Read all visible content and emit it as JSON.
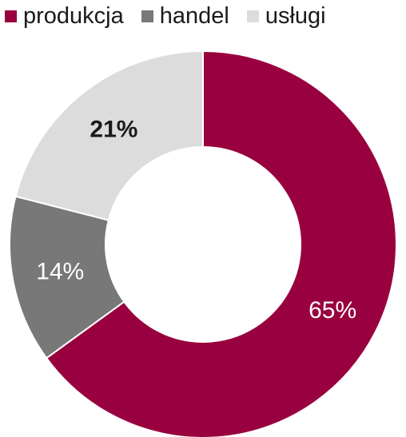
{
  "chart_data": {
    "type": "pie",
    "donut": true,
    "legend_position": "top",
    "title": "",
    "series": [
      {
        "name": "produkcja",
        "value": 65,
        "label": "65%",
        "color": "#99003f",
        "label_color": "#ffffff",
        "label_bold": false
      },
      {
        "name": "handel",
        "value": 14,
        "label": "14%",
        "color": "#787878",
        "label_color": "#ffffff",
        "label_bold": false
      },
      {
        "name": "usługi",
        "value": 21,
        "label": "21%",
        "color": "#dcdcdc",
        "label_color": "#1a1a1a",
        "label_bold": true
      }
    ]
  }
}
